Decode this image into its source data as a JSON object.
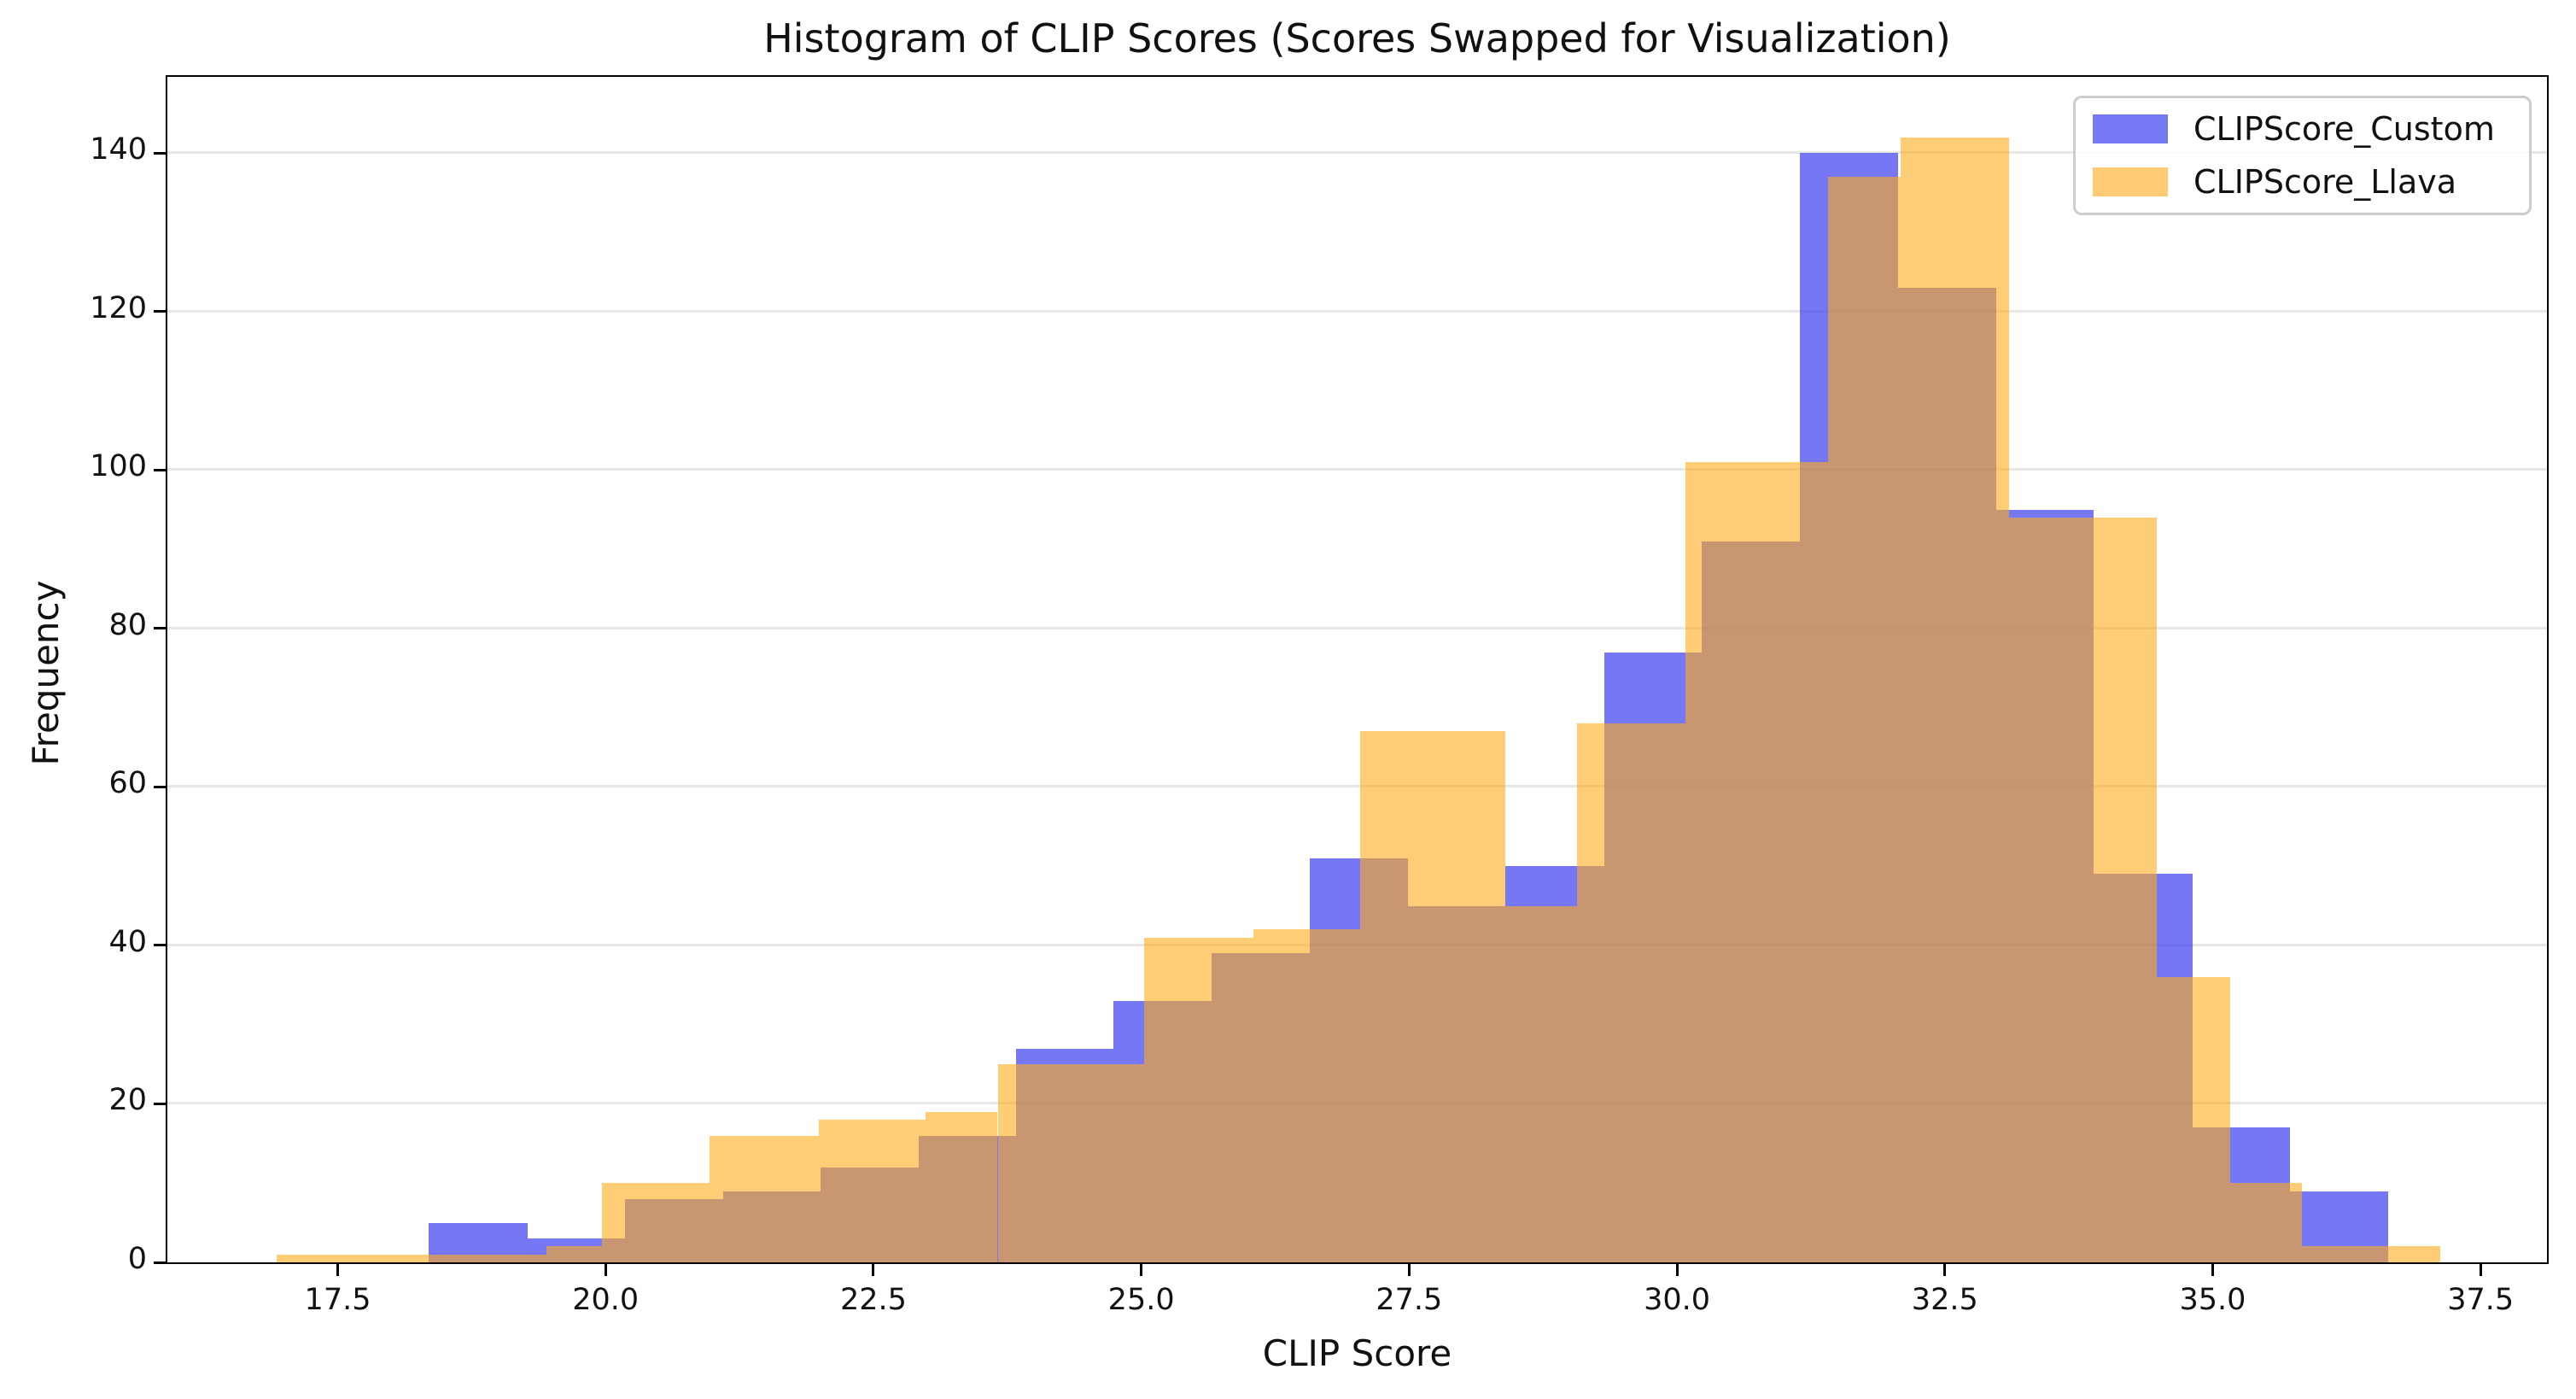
{
  "title": "Histogram of CLIP Scores (Scores Swapped for Visualization)",
  "xlabel": "CLIP Score",
  "ylabel": "Frequency",
  "legend": {
    "position": "upper right",
    "entries": [
      {
        "label": "CLIPScore_Custom",
        "color": "#7579f4"
      },
      {
        "label": "CLIPScore_Llava",
        "color": "#ffcc75"
      }
    ]
  },
  "axes": {
    "x_ticks": [
      "17.5",
      "20.0",
      "22.5",
      "25.0",
      "27.5",
      "30.0",
      "32.5",
      "35.0",
      "37.5"
    ],
    "x_tick_values": [
      17.5,
      20.0,
      22.5,
      25.0,
      27.5,
      30.0,
      32.5,
      35.0,
      37.5
    ],
    "y_ticks": [
      "0",
      "20",
      "40",
      "60",
      "80",
      "100",
      "120",
      "140"
    ],
    "y_tick_values": [
      0,
      20,
      40,
      60,
      80,
      100,
      120,
      140
    ],
    "xlim": [
      15.91,
      38.12
    ],
    "ylim": [
      0,
      149.6
    ],
    "grid": "horizontal"
  },
  "chart_data": {
    "type": "histogram",
    "xlabel": "CLIP Score",
    "ylabel": "Frequency",
    "overlap_alpha_note": "two overlapping translucent histograms; overlap renders brownish",
    "series": [
      {
        "name": "CLIPScore_Custom",
        "fill": "rgba(45,49,238,0.66)",
        "legend_color": "#7579f4",
        "bin_start": 18.35,
        "bin_width": 0.915,
        "bin_edges": [
          18.35,
          19.27,
          20.18,
          21.1,
          22.01,
          22.92,
          23.83,
          24.74,
          25.66,
          26.57,
          27.49,
          28.4,
          29.32,
          30.23,
          31.15,
          32.06,
          32.98,
          33.89,
          34.81,
          35.72,
          36.64
        ],
        "counts": [
          5,
          3,
          8,
          9,
          12,
          16,
          27,
          33,
          39,
          51,
          45,
          50,
          77,
          91,
          140,
          123,
          95,
          49,
          17,
          9
        ]
      },
      {
        "name": "CLIPScore_Llava",
        "fill": "rgba(255,171,25,0.60)",
        "legend_color": "#ffcc75",
        "bin_edges": [
          16.93,
          19.45,
          19.97,
          20.97,
          21.99,
          22.99,
          23.66,
          25.03,
          26.05,
          27.04,
          28.4,
          29.07,
          30.08,
          31.41,
          32.09,
          33.1,
          34.48,
          35.16,
          35.83,
          37.12
        ],
        "counts": [
          1,
          2,
          10,
          16,
          18,
          19,
          25,
          41,
          42,
          67,
          45,
          68,
          101,
          137,
          142,
          94,
          36,
          10,
          2
        ]
      }
    ]
  }
}
